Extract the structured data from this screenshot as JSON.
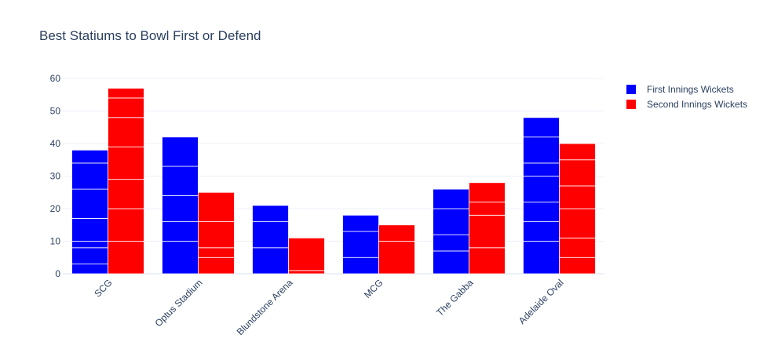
{
  "chart_data": {
    "type": "bar",
    "barmode": "group",
    "title": "Best Statiums to Bowl First or Defend",
    "xlabel": "",
    "ylabel": "",
    "categories": [
      "SCG",
      "Optus Stadium",
      "Blundstone Arena",
      "MCG",
      "The Gabba",
      "Adelaide Oval"
    ],
    "ylim": [
      0,
      60
    ],
    "yticks": [
      0,
      10,
      20,
      30,
      40,
      50,
      60
    ],
    "grid": true,
    "legend_position": "top-right",
    "series": [
      {
        "name": "First Innings Wickets",
        "color": "#0000ff",
        "values": [
          38,
          42,
          21,
          18,
          26,
          48
        ],
        "stacked_segments": [
          [
            3,
            5,
            2,
            7,
            9,
            8,
            4
          ],
          [
            10,
            6,
            8,
            9,
            9
          ],
          [
            8,
            8,
            5
          ],
          [
            5,
            8,
            5
          ],
          [
            7,
            5,
            8,
            6
          ],
          [
            10,
            6,
            6,
            8,
            4,
            8,
            6
          ]
        ]
      },
      {
        "name": "Second Innings Wickets",
        "color": "#ff0000",
        "values": [
          57,
          25,
          11,
          15,
          28,
          40
        ],
        "stacked_segments": [
          [
            10,
            10,
            9,
            10,
            9,
            6,
            3
          ],
          [
            5,
            3,
            8,
            9
          ],
          [
            1,
            10
          ],
          [
            10,
            5
          ],
          [
            8,
            10,
            4,
            6
          ],
          [
            5,
            6,
            9,
            7,
            8,
            5
          ]
        ]
      }
    ]
  }
}
